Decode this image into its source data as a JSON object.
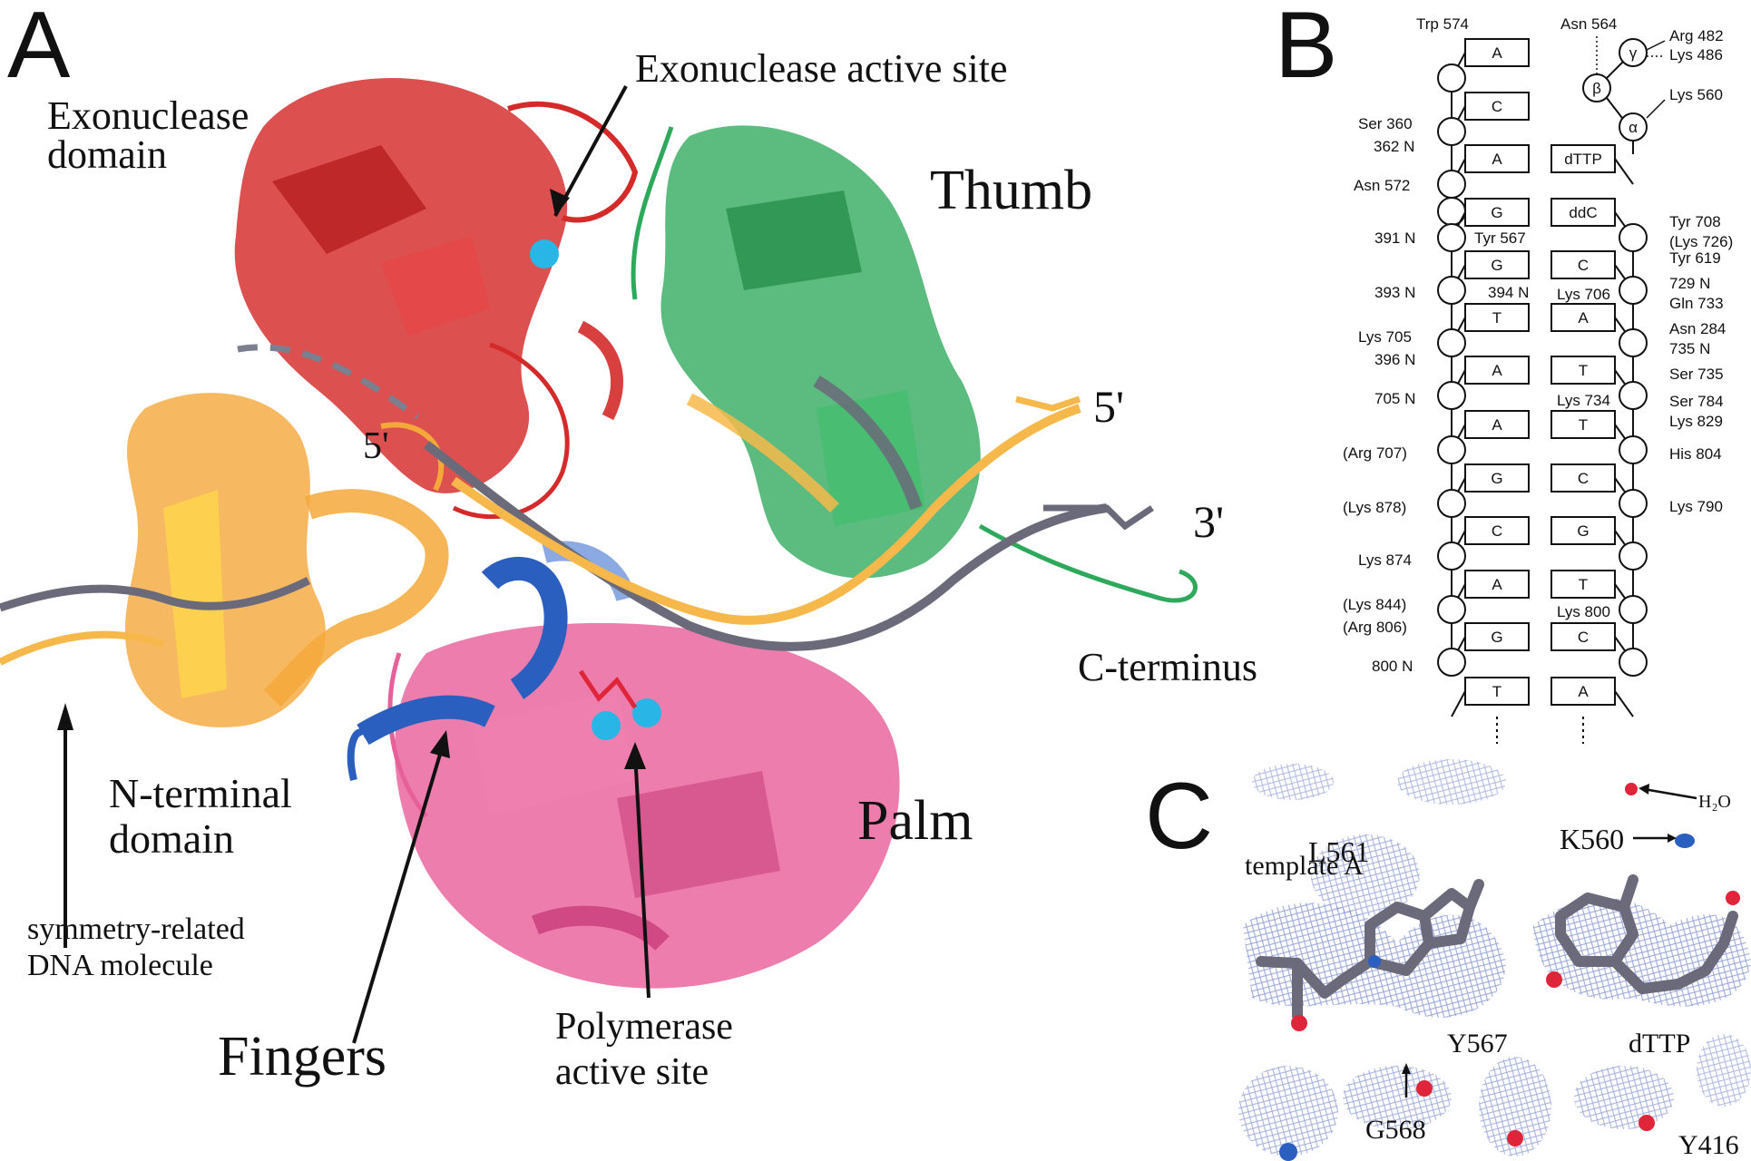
{
  "panels": {
    "a": "A",
    "b": "B",
    "c": "C"
  },
  "panel_a": {
    "exonuclease_domain": [
      "Exonuclease",
      "domain"
    ],
    "exonuclease_active_site": "Exonuclease active site",
    "thumb": "Thumb",
    "five_prime_right": "5'",
    "three_prime": "3'",
    "five_prime_left": "5'",
    "c_terminus": "C-terminus",
    "n_terminal_domain": [
      "N-terminal",
      "domain"
    ],
    "palm": "Palm",
    "symmetry_dna": [
      "symmetry-related",
      "DNA molecule"
    ],
    "fingers": "Fingers",
    "polymerase_active_site": [
      "Polymerase",
      "active site"
    ],
    "colors": {
      "exonuclease": "#d42a2a",
      "thumb": "#2ea85a",
      "palm": "#e8609a",
      "fingers": "#2a5fbf",
      "n_terminal": "#f4a83a",
      "dna_primer": "#f6b84a",
      "dna_template": "#6a6a7a",
      "metal_ion": "#29b6e6"
    }
  },
  "panel_b": {
    "template_bases": [
      "A",
      "C",
      "A",
      "",
      "G",
      "G",
      "T",
      "A",
      "A",
      "G",
      "C",
      "A",
      "G",
      "T"
    ],
    "primer_bases": [
      "",
      "",
      "dTTP",
      "",
      "ddC",
      "C",
      "A",
      "T",
      "T",
      "C",
      "G",
      "T",
      "C",
      "A"
    ],
    "left_labels": [
      "Trp 574",
      "Ser 360",
      "362 N",
      "Asn 572",
      "391 N",
      "Tyr 567",
      "393 N",
      "394 N",
      "Lys 705",
      "396 N",
      "705 N",
      "(Arg 707)",
      "(Lys 878)",
      "Lys 874",
      "(Lys 844)",
      "(Arg 806)",
      "800 N"
    ],
    "right_labels": [
      "Asn 564",
      "Arg 482",
      "Lys 486",
      "Lys 560",
      "Tyr 708",
      "(Lys 726)",
      "Tyr 619",
      "729 N",
      "Gln 733",
      "Lys 706",
      "Asn 284",
      "735 N",
      "Ser 735",
      "Lys 734",
      "Ser 784",
      "Lys 829",
      "His 804",
      "Lys 790",
      "Lys 800"
    ],
    "phosphates": [
      "γ",
      "β",
      "α"
    ]
  },
  "panel_c": {
    "labels": [
      "L561",
      "H₂O",
      "K560",
      "template A",
      "Y567",
      "dTTP",
      "G568",
      "Y416"
    ],
    "colors": {
      "mesh": "#8a9ad6",
      "carbon": "#6a6a7a",
      "oxygen": "#e0243a",
      "nitrogen": "#2a5fbf"
    }
  }
}
